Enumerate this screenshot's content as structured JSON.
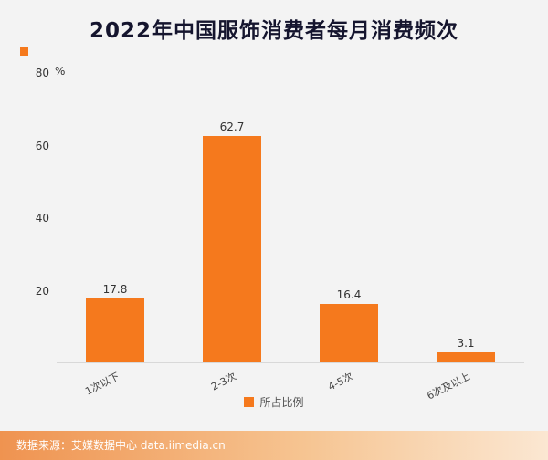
{
  "chart_data": {
    "type": "bar",
    "title": "2022年中国服饰消费者每月消费频次",
    "categories": [
      "1次以下",
      "2-3次",
      "4-5次",
      "6次及以上"
    ],
    "values": [
      17.8,
      62.7,
      16.4,
      3.1
    ],
    "ylabel": "%",
    "ylim": [
      0,
      80
    ],
    "yticks": [
      20,
      40,
      60,
      80
    ],
    "legend": [
      "所占比例"
    ],
    "legend_position": "bottom",
    "grid": false,
    "bar_color": "#F5791D"
  },
  "footer": {
    "source_text": "数据来源：艾媒数据中心 data.iimedia.cn"
  },
  "colors": {
    "accent": "#F5791D",
    "title": "#15152e",
    "background": "#f3f3f3",
    "footer_gradient_start": "#ef9350",
    "footer_gradient_end": "#fbe7d2"
  }
}
